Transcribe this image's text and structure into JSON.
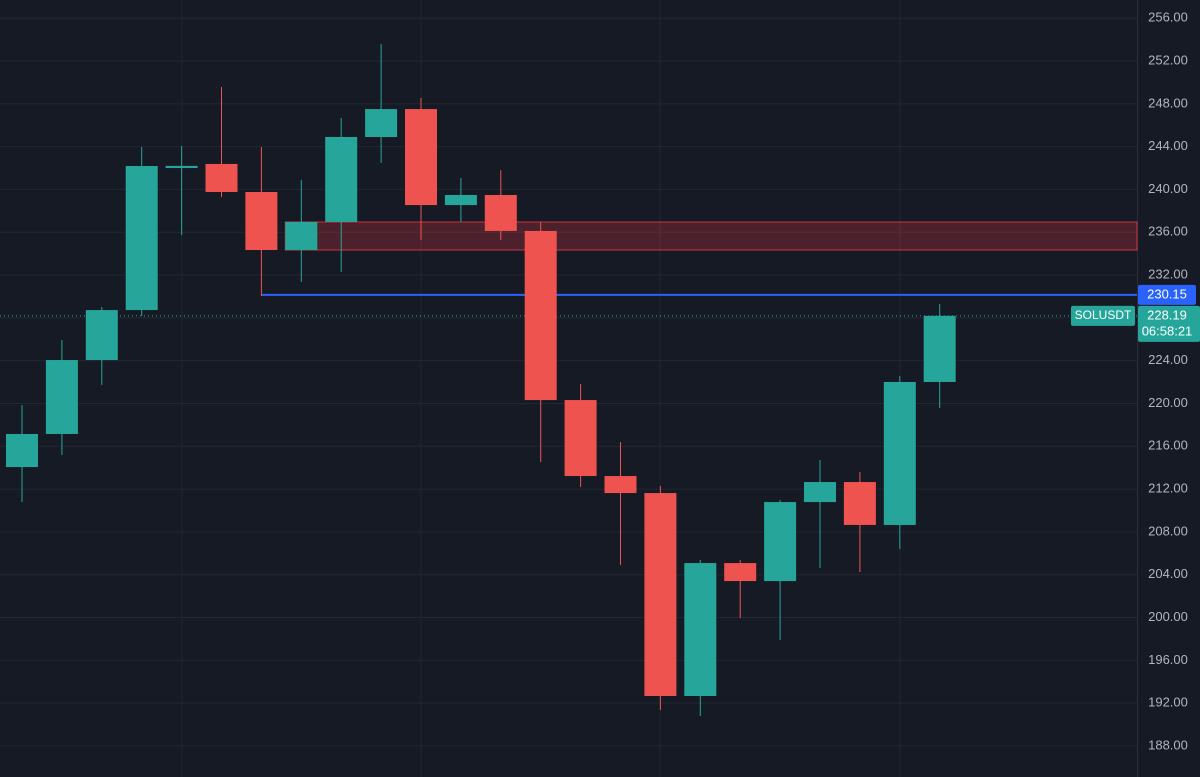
{
  "chart_data": {
    "type": "candlestick",
    "symbol": "SOLUSDT",
    "countdown": "06:58:21",
    "open": [
      214.06,
      217.15,
      224.06,
      228.73,
      242.0,
      242.38,
      239.76,
      234.34,
      236.96,
      244.9,
      247.51,
      238.54,
      239.48,
      236.12,
      220.32,
      213.22,
      211.63,
      192.67,
      205.09,
      203.41,
      210.79,
      212.66,
      208.65,
      222.01
    ],
    "high": [
      219.86,
      225.93,
      229.01,
      243.96,
      244.06,
      249.57,
      243.96,
      240.88,
      246.67,
      253.59,
      248.54,
      241.07,
      241.81,
      236.96,
      221.82,
      216.4,
      212.29,
      205.37,
      205.37,
      210.98,
      214.72,
      213.6,
      222.57,
      229.29
    ],
    "low": [
      210.79,
      215.18,
      221.73,
      228.17,
      235.74,
      239.29,
      230.04,
      231.35,
      232.28,
      242.47,
      235.27,
      236.96,
      235.27,
      214.53,
      212.19,
      204.91,
      191.36,
      190.8,
      199.95,
      197.9,
      204.63,
      204.25,
      206.4,
      219.58
    ],
    "close": [
      217.15,
      224.06,
      228.73,
      242.19,
      242.2,
      239.76,
      234.34,
      236.96,
      244.9,
      247.51,
      238.54,
      239.48,
      236.12,
      220.32,
      213.22,
      211.63,
      192.67,
      205.09,
      203.41,
      210.79,
      212.66,
      208.65,
      222.01,
      228.19
    ],
    "up_color": "#26a69a",
    "down_color": "#ef5350",
    "zone": {
      "top": 236.96,
      "bottom": 234.34,
      "color": "#f23645"
    },
    "level": {
      "value": 230.15,
      "color": "#2962ff"
    },
    "ylim": [
      185.1,
      257.7
    ],
    "yticks": [
      {
        "value": 188,
        "label": "188.00"
      },
      {
        "value": 192,
        "label": "192.00"
      },
      {
        "value": 196,
        "label": "196.00"
      },
      {
        "value": 200,
        "label": "200.00"
      },
      {
        "value": 204,
        "label": "204.00"
      },
      {
        "value": 208,
        "label": "208.00"
      },
      {
        "value": 212,
        "label": "212.00"
      },
      {
        "value": 216,
        "label": "216.00"
      },
      {
        "value": 220,
        "label": "220.00"
      },
      {
        "value": 224,
        "label": "224.00"
      },
      {
        "value": 228,
        "label": "228.00"
      },
      {
        "value": 232,
        "label": "232.00"
      },
      {
        "value": 236,
        "label": "236.00"
      },
      {
        "value": 240,
        "label": "240.00"
      },
      {
        "value": 244,
        "label": "244.00"
      },
      {
        "value": 248,
        "label": "248.00"
      },
      {
        "value": 252,
        "label": "252.00"
      },
      {
        "value": 256,
        "label": "256.00"
      }
    ],
    "grid": true
  }
}
